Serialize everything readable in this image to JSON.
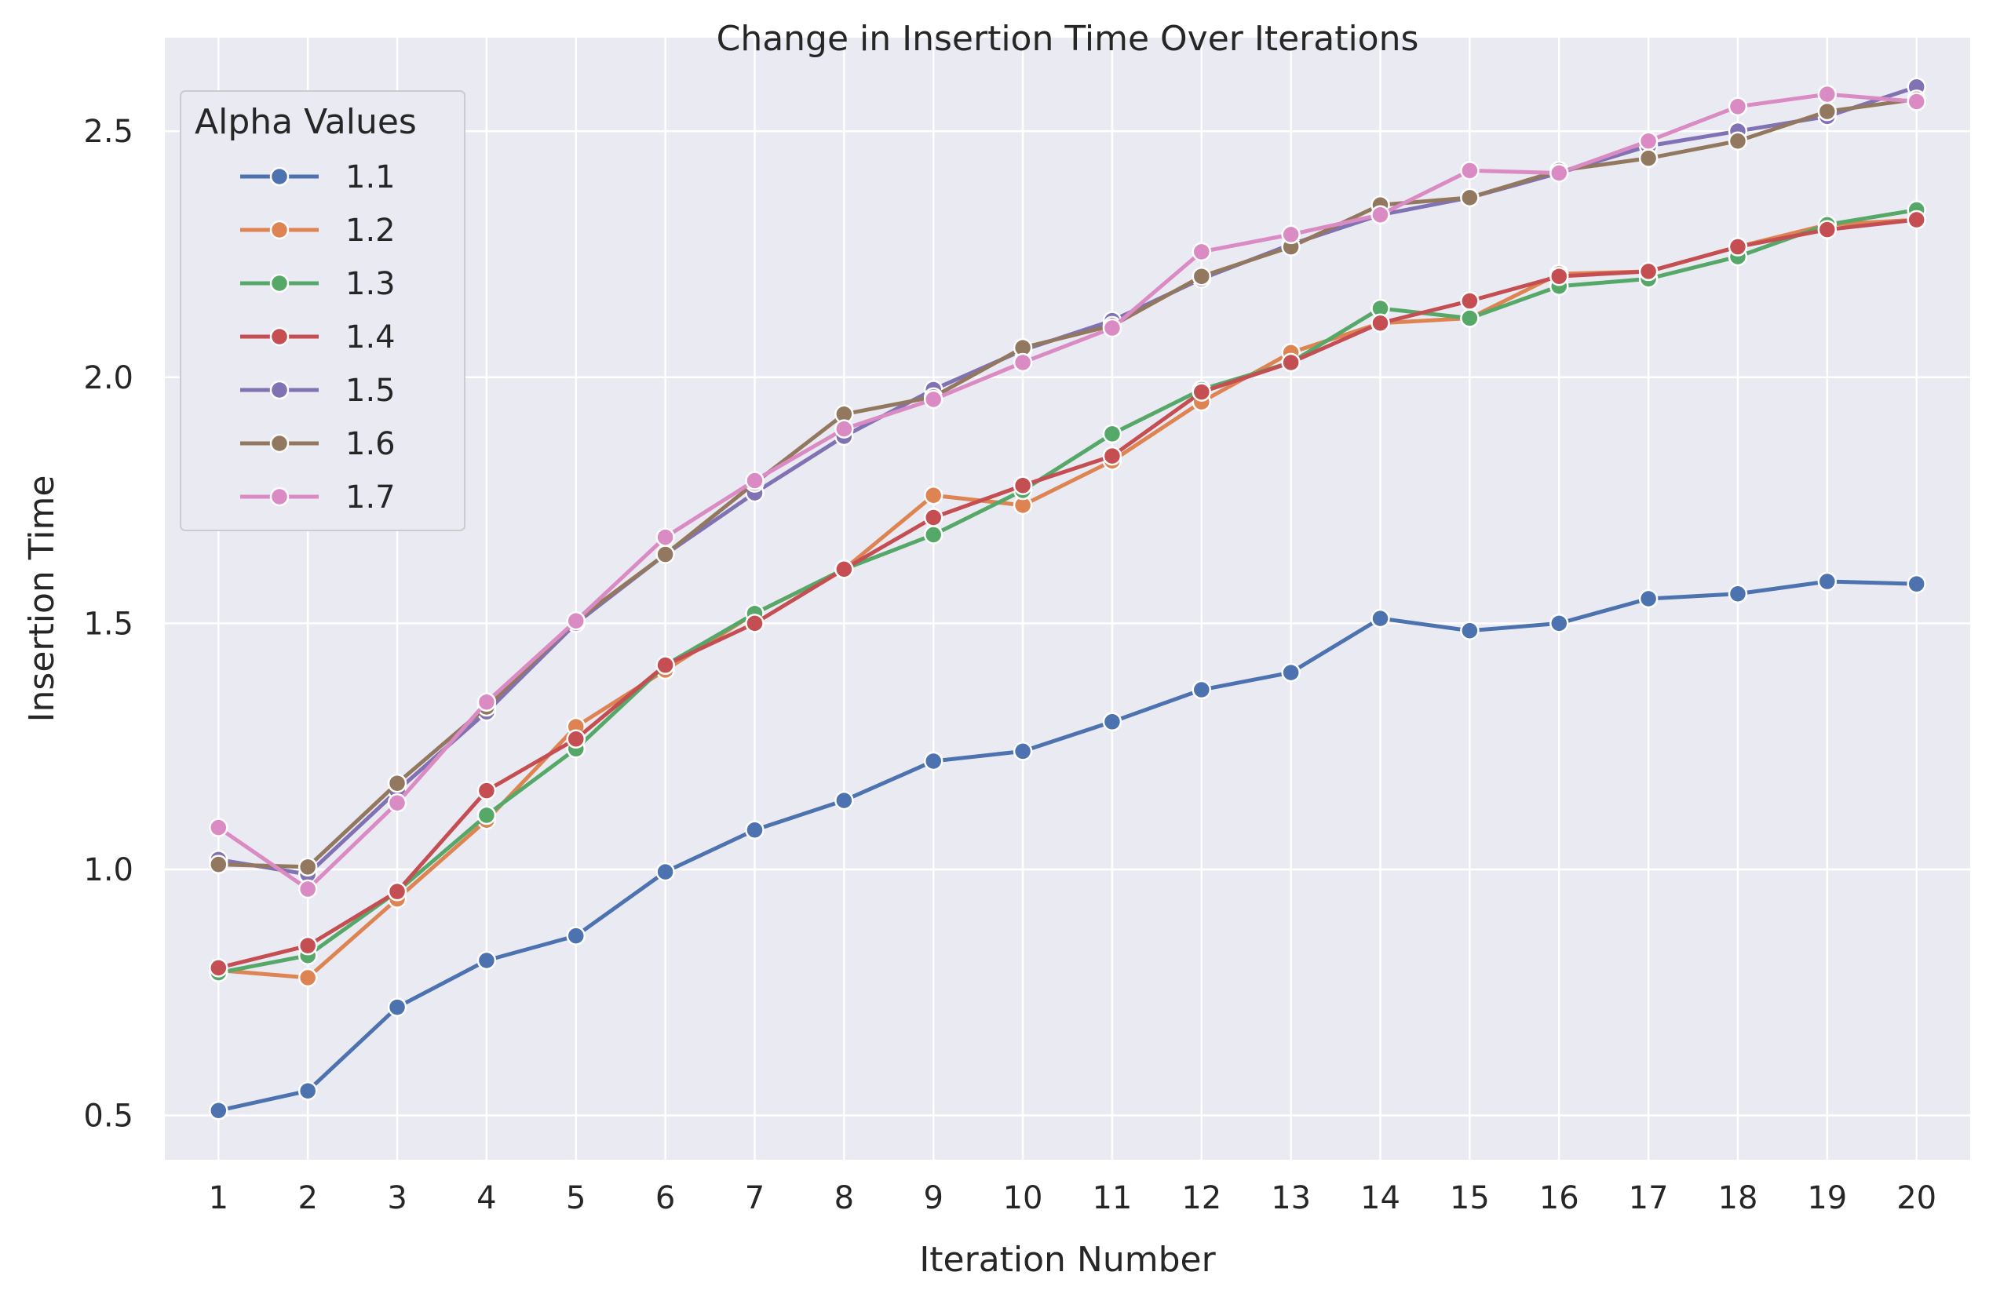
{
  "chart_data": {
    "type": "line",
    "title": "Change in Insertion Time Over Iterations",
    "xlabel": "Iteration Number",
    "ylabel": "Insertion Time",
    "x": [
      1,
      2,
      3,
      4,
      5,
      6,
      7,
      8,
      9,
      10,
      11,
      12,
      13,
      14,
      15,
      16,
      17,
      18,
      19,
      20
    ],
    "x_ticks": [
      "1",
      "2",
      "3",
      "4",
      "5",
      "6",
      "7",
      "8",
      "9",
      "10",
      "11",
      "12",
      "13",
      "14",
      "15",
      "16",
      "17",
      "18",
      "19",
      "20"
    ],
    "y_ticks": [
      "0.5",
      "1.0",
      "1.5",
      "2.0",
      "2.5"
    ],
    "ylim": [
      0.41,
      2.69
    ],
    "xlim": [
      0.4,
      20.6
    ],
    "grid": true,
    "background": "#eaeaf2",
    "legend": {
      "title": "Alpha Values",
      "position": "top-left"
    },
    "series": [
      {
        "name": "1.1",
        "color": "#4c72b0",
        "values": [
          0.51,
          0.55,
          0.72,
          0.815,
          0.865,
          0.995,
          1.08,
          1.14,
          1.22,
          1.24,
          1.3,
          1.365,
          1.4,
          1.51,
          1.485,
          1.5,
          1.55,
          1.56,
          1.585,
          1.58
        ]
      },
      {
        "name": "1.2",
        "color": "#dd8452",
        "values": [
          0.795,
          0.78,
          0.94,
          1.1,
          1.29,
          1.405,
          1.52,
          1.61,
          1.76,
          1.74,
          1.83,
          1.95,
          2.05,
          2.11,
          2.12,
          2.21,
          2.215,
          2.265,
          2.31,
          2.32
        ]
      },
      {
        "name": "1.3",
        "color": "#55a868",
        "values": [
          0.79,
          0.825,
          0.955,
          1.11,
          1.245,
          1.415,
          1.52,
          1.61,
          1.68,
          1.77,
          1.885,
          1.975,
          2.03,
          2.14,
          2.12,
          2.185,
          2.2,
          2.245,
          2.31,
          2.34
        ]
      },
      {
        "name": "1.4",
        "color": "#c44e52",
        "values": [
          0.8,
          0.845,
          0.955,
          1.16,
          1.265,
          1.415,
          1.5,
          1.61,
          1.715,
          1.78,
          1.84,
          1.97,
          2.03,
          2.11,
          2.155,
          2.205,
          2.215,
          2.265,
          2.3,
          2.32
        ]
      },
      {
        "name": "1.5",
        "color": "#8172b3",
        "values": [
          1.02,
          0.99,
          1.16,
          1.32,
          1.5,
          1.64,
          1.765,
          1.88,
          1.975,
          2.055,
          2.115,
          2.2,
          2.27,
          2.33,
          2.365,
          2.415,
          2.47,
          2.5,
          2.53,
          2.59
        ]
      },
      {
        "name": "1.6",
        "color": "#937860",
        "values": [
          1.01,
          1.005,
          1.175,
          1.33,
          1.505,
          1.64,
          1.785,
          1.925,
          1.96,
          2.06,
          2.105,
          2.205,
          2.265,
          2.35,
          2.365,
          2.42,
          2.445,
          2.48,
          2.54,
          2.565
        ]
      },
      {
        "name": "1.7",
        "color": "#da8bc3",
        "values": [
          1.085,
          0.96,
          1.135,
          1.34,
          1.505,
          1.675,
          1.79,
          1.895,
          1.955,
          2.03,
          2.1,
          2.255,
          2.29,
          2.33,
          2.42,
          2.415,
          2.48,
          2.55,
          2.575,
          2.56
        ]
      }
    ]
  }
}
